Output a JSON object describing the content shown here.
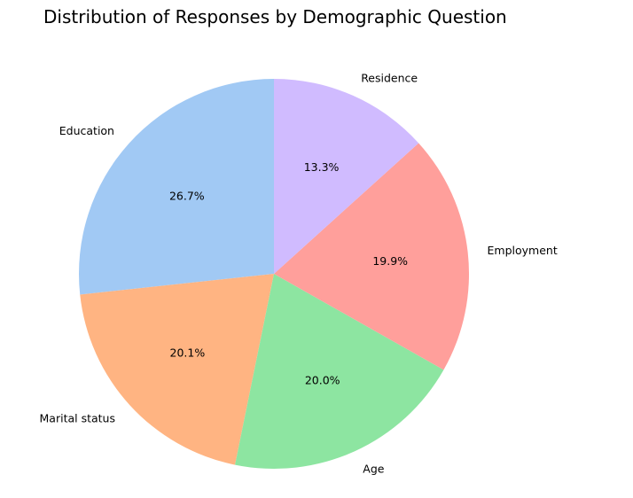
{
  "chart_data": {
    "type": "pie",
    "title": "Distribution of Responses by Demographic Question",
    "start_angle_deg": 90,
    "direction": "counterclockwise",
    "slices": [
      {
        "label": "Education",
        "value": 26.7,
        "pct_label": "26.7%",
        "color": "#a1c9f4"
      },
      {
        "label": "Marital status",
        "value": 20.1,
        "pct_label": "20.1%",
        "color": "#ffb482"
      },
      {
        "label": "Age",
        "value": 20.0,
        "pct_label": "20.0%",
        "color": "#8de5a1"
      },
      {
        "label": "Employment",
        "value": 19.9,
        "pct_label": "19.9%",
        "color": "#ff9f9b"
      },
      {
        "label": "Residence",
        "value": 13.3,
        "pct_label": "13.3%",
        "color": "#d0bbff"
      }
    ]
  }
}
